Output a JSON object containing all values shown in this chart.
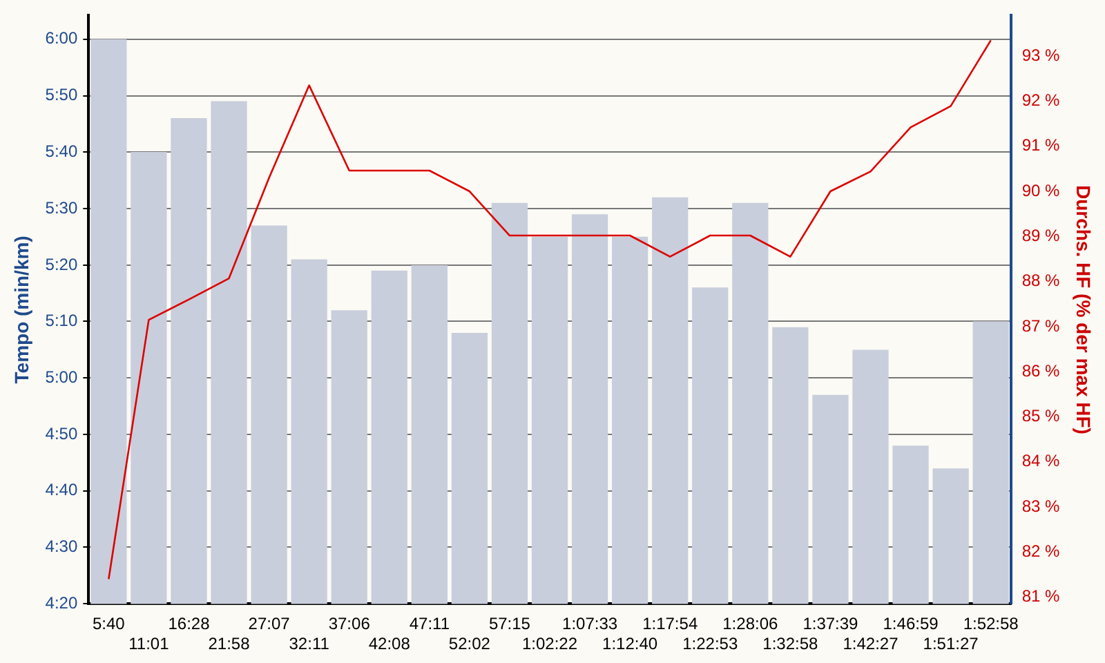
{
  "chart_data": {
    "type": "bar",
    "categories": [
      "5:40",
      "11:01",
      "16:28",
      "21:58",
      "27:07",
      "32:11",
      "37:06",
      "42:08",
      "47:11",
      "52:02",
      "57:15",
      "1:02:22",
      "1:07:33",
      "1:12:40",
      "1:17:54",
      "1:22:53",
      "1:28:06",
      "1:32:58",
      "1:37:39",
      "1:42:27",
      "1:46:59",
      "1:51:27",
      "1:52:58"
    ],
    "ylabel": "Tempo (min/km)",
    "y2label": "Durchs. HF (% der max HF)",
    "series": [
      {
        "color": "#c8cedb",
        "values": [
          6.0,
          5.667,
          5.767,
          5.817,
          5.45,
          5.35,
          5.2,
          5.317,
          5.333,
          5.133,
          5.517,
          5.417,
          5.483,
          5.417,
          5.533,
          5.267,
          5.517,
          5.15,
          4.95,
          5.083,
          4.8,
          4.733,
          5.167
        ]
      },
      {
        "type": "line",
        "axis": "y2",
        "color": "#dd0000",
        "values": [
          81.4,
          87.15,
          87.6,
          88.07,
          90.3,
          92.35,
          90.46,
          90.46,
          90.46,
          90.0,
          89.02,
          89.02,
          89.02,
          89.02,
          88.55,
          89.02,
          89.02,
          88.55,
          90.0,
          90.44,
          91.42,
          91.89,
          93.35
        ]
      }
    ],
    "ylim": [
      4.333,
      6.07
    ],
    "yticks": [
      {
        "value": 4.333,
        "label": "4:20"
      },
      {
        "value": 4.5,
        "label": "4:30"
      },
      {
        "value": 4.667,
        "label": "4:40"
      },
      {
        "value": 4.833,
        "label": "4:50"
      },
      {
        "value": 5.0,
        "label": "5:00"
      },
      {
        "value": 5.167,
        "label": "5:10"
      },
      {
        "value": 5.333,
        "label": "5:20"
      },
      {
        "value": 5.5,
        "label": "5:30"
      },
      {
        "value": 5.667,
        "label": "5:40"
      },
      {
        "value": 5.833,
        "label": "5:50"
      },
      {
        "value": 6.0,
        "label": "6:00"
      }
    ],
    "y2lim": [
      80.85,
      93.9
    ],
    "y2ticks": [
      {
        "value": 81,
        "label": "81 %"
      },
      {
        "value": 82,
        "label": "82 %"
      },
      {
        "value": 83,
        "label": "83 %"
      },
      {
        "value": 84,
        "label": "84 %"
      },
      {
        "value": 85,
        "label": "85 %"
      },
      {
        "value": 86,
        "label": "86 %"
      },
      {
        "value": 87,
        "label": "87 %"
      },
      {
        "value": 88,
        "label": "88 %"
      },
      {
        "value": 89,
        "label": "89 %"
      },
      {
        "value": 90,
        "label": "90 %"
      },
      {
        "value": 91,
        "label": "91 %"
      },
      {
        "value": 92,
        "label": "92 %"
      },
      {
        "value": 93,
        "label": "93 %"
      }
    ],
    "grid": "y",
    "legend": false,
    "marker": "none",
    "line_style": "solid"
  }
}
